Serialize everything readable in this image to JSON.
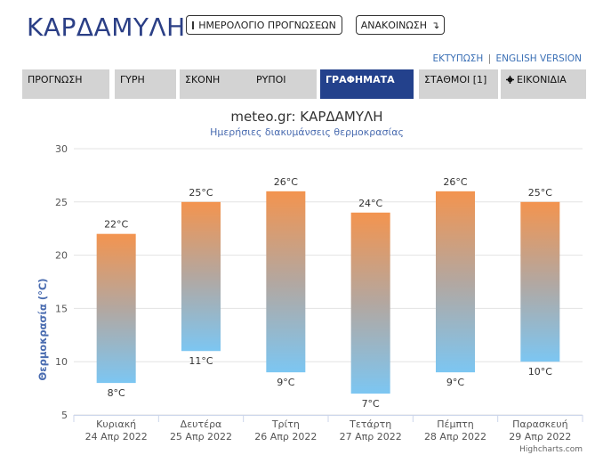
{
  "page": {
    "title": "ΚΑΡΔΑΜΥΛΗ",
    "calendar_button": "ΗΜΕΡΟΛΟΓΙΟ ΠΡΟΓΝΩΣΕΩΝ",
    "announcement_button": "ΑΝΑΚΟΙΝΩΣΗ",
    "print_link": "ΕΚΤΥΠΩΣΗ",
    "link_separator": "|",
    "english_link": "ENGLISH VERSION"
  },
  "tabs": [
    {
      "label": "ΠΡΟΓΝΩΣΗ"
    },
    {
      "label": "ΓΥΡΗ"
    },
    {
      "label": "ΣΚΟΝΗ"
    },
    {
      "label": "ΡΥΠΟΙ"
    },
    {
      "label": "ΓΡΑΦΗΜΑΤΑ",
      "active": true
    },
    {
      "label": "ΣΤΑΘΜΟΙ [1]"
    },
    {
      "label": "ΕΙΚΟΝΙΔΙΑ",
      "icon": "gear-icon"
    }
  ],
  "colors": {
    "brand": "#2b3f86",
    "active_tab": "#23418c",
    "bar_top": "#f3944f",
    "bar_bottom": "#7cc6f2",
    "link": "#3a6fb5"
  },
  "chart_data": {
    "type": "bar",
    "title": "meteo.gr: ΚΑΡΔΑΜΥΛΗ",
    "subtitle": "Ημερήσιες διακυμάνσεις θερμοκρασίας",
    "ylabel": "Θερμοκρασία (°C)",
    "credits": "Highcharts.com",
    "ylim": [
      5,
      30
    ],
    "yticks": [
      5,
      10,
      15,
      20,
      25,
      30
    ],
    "grid": true,
    "categories": [
      {
        "day": "Κυριακή",
        "date": "24 Απρ 2022"
      },
      {
        "day": "Δευτέρα",
        "date": "25 Απρ 2022"
      },
      {
        "day": "Τρίτη",
        "date": "26 Απρ 2022"
      },
      {
        "day": "Τετάρτη",
        "date": "27 Απρ 2022"
      },
      {
        "day": "Πέμπτη",
        "date": "28 Απρ 2022"
      },
      {
        "day": "Παρασκευή",
        "date": "29 Απρ 2022"
      }
    ],
    "series": [
      {
        "low": 8,
        "high": 22,
        "low_label": "8°C",
        "high_label": "22°C"
      },
      {
        "low": 11,
        "high": 25,
        "low_label": "11°C",
        "high_label": "25°C"
      },
      {
        "low": 9,
        "high": 26,
        "low_label": "9°C",
        "high_label": "26°C"
      },
      {
        "low": 7,
        "high": 24,
        "low_label": "7°C",
        "high_label": "24°C"
      },
      {
        "low": 9,
        "high": 26,
        "low_label": "9°C",
        "high_label": "26°C"
      },
      {
        "low": 10,
        "high": 25,
        "low_label": "10°C",
        "high_label": "25°C"
      }
    ]
  }
}
